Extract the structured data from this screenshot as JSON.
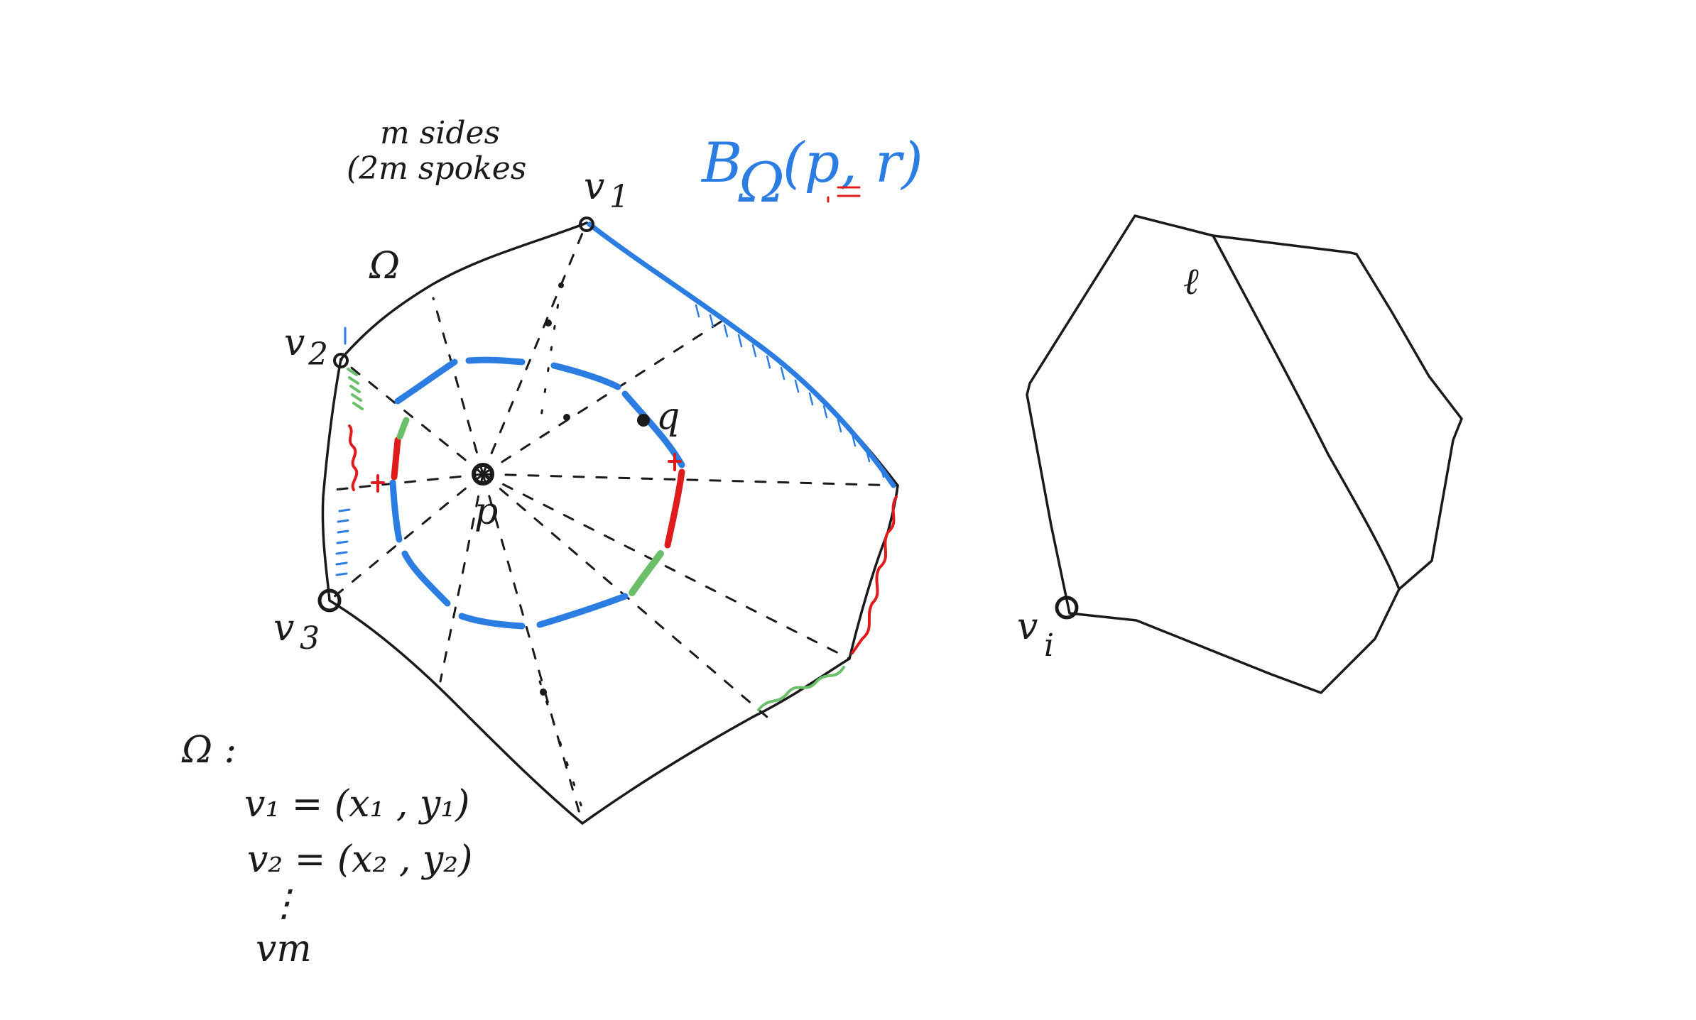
{
  "annotations": {
    "sides": "m sides",
    "spokes": "(2m spokes",
    "omega": "Ω",
    "ball": "B",
    "ball_sub": "Ω",
    "ball_args": "(p, r)"
  },
  "points": {
    "v1": "v",
    "v1_sub": "1",
    "v2": "v",
    "v2_sub": "2",
    "v3": "v",
    "v3_sub": "3",
    "p": "p",
    "q": "q",
    "vi": "v",
    "vi_sub": "i",
    "l": "ℓ"
  },
  "vertex_list": {
    "omega": "Ω :",
    "row1": "v₁ = (x₁ , y₁)",
    "row2": "v₂ = (x₂ , y₂)",
    "ellipsis": "⋮",
    "last": "vm"
  },
  "colors": {
    "ink": "#1a1a1a",
    "blue": "#2b7de1",
    "red": "#e01b1b",
    "green": "#6cbf6a"
  }
}
